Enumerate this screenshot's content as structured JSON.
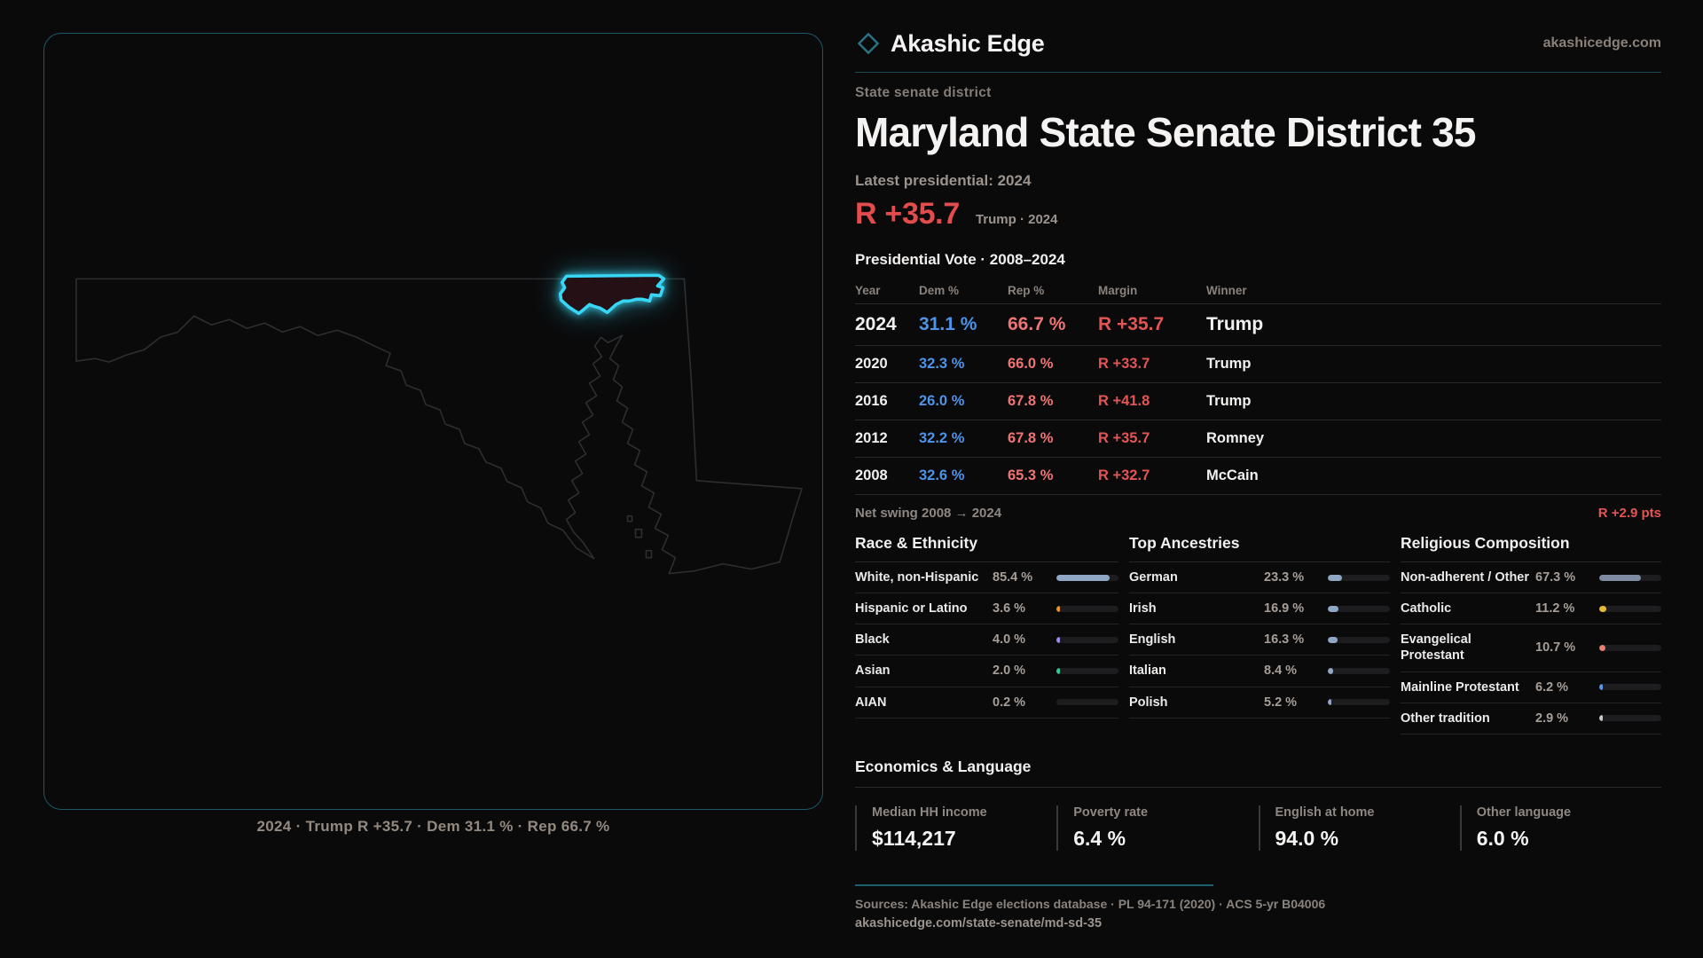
{
  "brand": {
    "name": "Akashic Edge",
    "domain": "akashicedge.com",
    "mark_color": "#2a7484"
  },
  "header": {
    "kicker": "State senate district",
    "title": "Maryland State Senate District 35",
    "latest_label": "Latest presidential: 2024",
    "margin_big": "R +35.7",
    "margin_note": "Trump · 2024"
  },
  "map": {
    "caption": "2024 · Trump R +35.7 · Dem 31.1 % · Rep 66.7 %",
    "highlight_color": "#38d6f5"
  },
  "vote_table": {
    "title": "Presidential Vote · 2008–2024",
    "columns": {
      "year": "Year",
      "dem": "Dem %",
      "rep": "Rep %",
      "margin": "Margin",
      "winner": "Winner"
    },
    "rows": [
      {
        "year": "2024",
        "dem": "31.1 %",
        "rep": "66.7 %",
        "margin": "R +35.7",
        "winner": "Trump"
      },
      {
        "year": "2020",
        "dem": "32.3 %",
        "rep": "66.0 %",
        "margin": "R +33.7",
        "winner": "Trump"
      },
      {
        "year": "2016",
        "dem": "26.0 %",
        "rep": "67.8 %",
        "margin": "R +41.8",
        "winner": "Trump"
      },
      {
        "year": "2012",
        "dem": "32.2 %",
        "rep": "67.8 %",
        "margin": "R +35.7",
        "winner": "Romney"
      },
      {
        "year": "2008",
        "dem": "32.6 %",
        "rep": "65.3 %",
        "margin": "R +32.7",
        "winner": "McCain"
      }
    ]
  },
  "net_swing": {
    "label": "Net swing 2008 → 2024",
    "value": "R +2.9 pts"
  },
  "demographics": {
    "race": {
      "title": "Race & Ethnicity",
      "rows": [
        {
          "label": "White, non-Hispanic",
          "value": "85.4 %",
          "pct": 85.4,
          "color": "#8fa6c4"
        },
        {
          "label": "Hispanic or Latino",
          "value": "3.6 %",
          "pct": 3.6,
          "color": "#e8941f"
        },
        {
          "label": "Black",
          "value": "4.0 %",
          "pct": 4.0,
          "color": "#9c8cf0"
        },
        {
          "label": "Asian",
          "value": "2.0 %",
          "pct": 2.0,
          "color": "#2fca92"
        },
        {
          "label": "AIAN",
          "value": "0.2 %",
          "pct": 0.2,
          "color": "#c8c8c8"
        }
      ]
    },
    "ancestries": {
      "title": "Top Ancestries",
      "rows": [
        {
          "label": "German",
          "value": "23.3 %",
          "pct": 23.3,
          "color": "#8fa6c4"
        },
        {
          "label": "Irish",
          "value": "16.9 %",
          "pct": 16.9,
          "color": "#8fa6c4"
        },
        {
          "label": "English",
          "value": "16.3 %",
          "pct": 16.3,
          "color": "#8fa6c4"
        },
        {
          "label": "Italian",
          "value": "8.4 %",
          "pct": 8.4,
          "color": "#8fa6c4"
        },
        {
          "label": "Polish",
          "value": "5.2 %",
          "pct": 5.2,
          "color": "#8fa6c4"
        }
      ]
    },
    "religion": {
      "title": "Religious Composition",
      "rows": [
        {
          "label": "Non-adherent / Other",
          "value": "67.3 %",
          "pct": 67.3,
          "color": "#7e8ba3"
        },
        {
          "label": "Catholic",
          "value": "11.2 %",
          "pct": 11.2,
          "color": "#e8b838"
        },
        {
          "label": "Evangelical Protestant",
          "value": "10.7 %",
          "pct": 10.7,
          "color": "#e87f74"
        },
        {
          "label": "Mainline Protestant",
          "value": "6.2 %",
          "pct": 6.2,
          "color": "#5599e8"
        },
        {
          "label": "Other tradition",
          "value": "2.9 %",
          "pct": 2.9,
          "color": "#c8c8c8"
        }
      ]
    }
  },
  "economics": {
    "title": "Economics & Language",
    "stats": [
      {
        "label": "Median HH income",
        "value": "$114,217"
      },
      {
        "label": "Poverty rate",
        "value": "6.4 %"
      },
      {
        "label": "English at home",
        "value": "94.0 %"
      },
      {
        "label": "Other language",
        "value": "6.0 %"
      }
    ]
  },
  "footer": {
    "sources": "Sources: Akashic Edge elections database · PL 94-171 (2020) · ACS 5-yr B04006",
    "permalink": "akashicedge.com/state-senate/md-sd-35"
  }
}
